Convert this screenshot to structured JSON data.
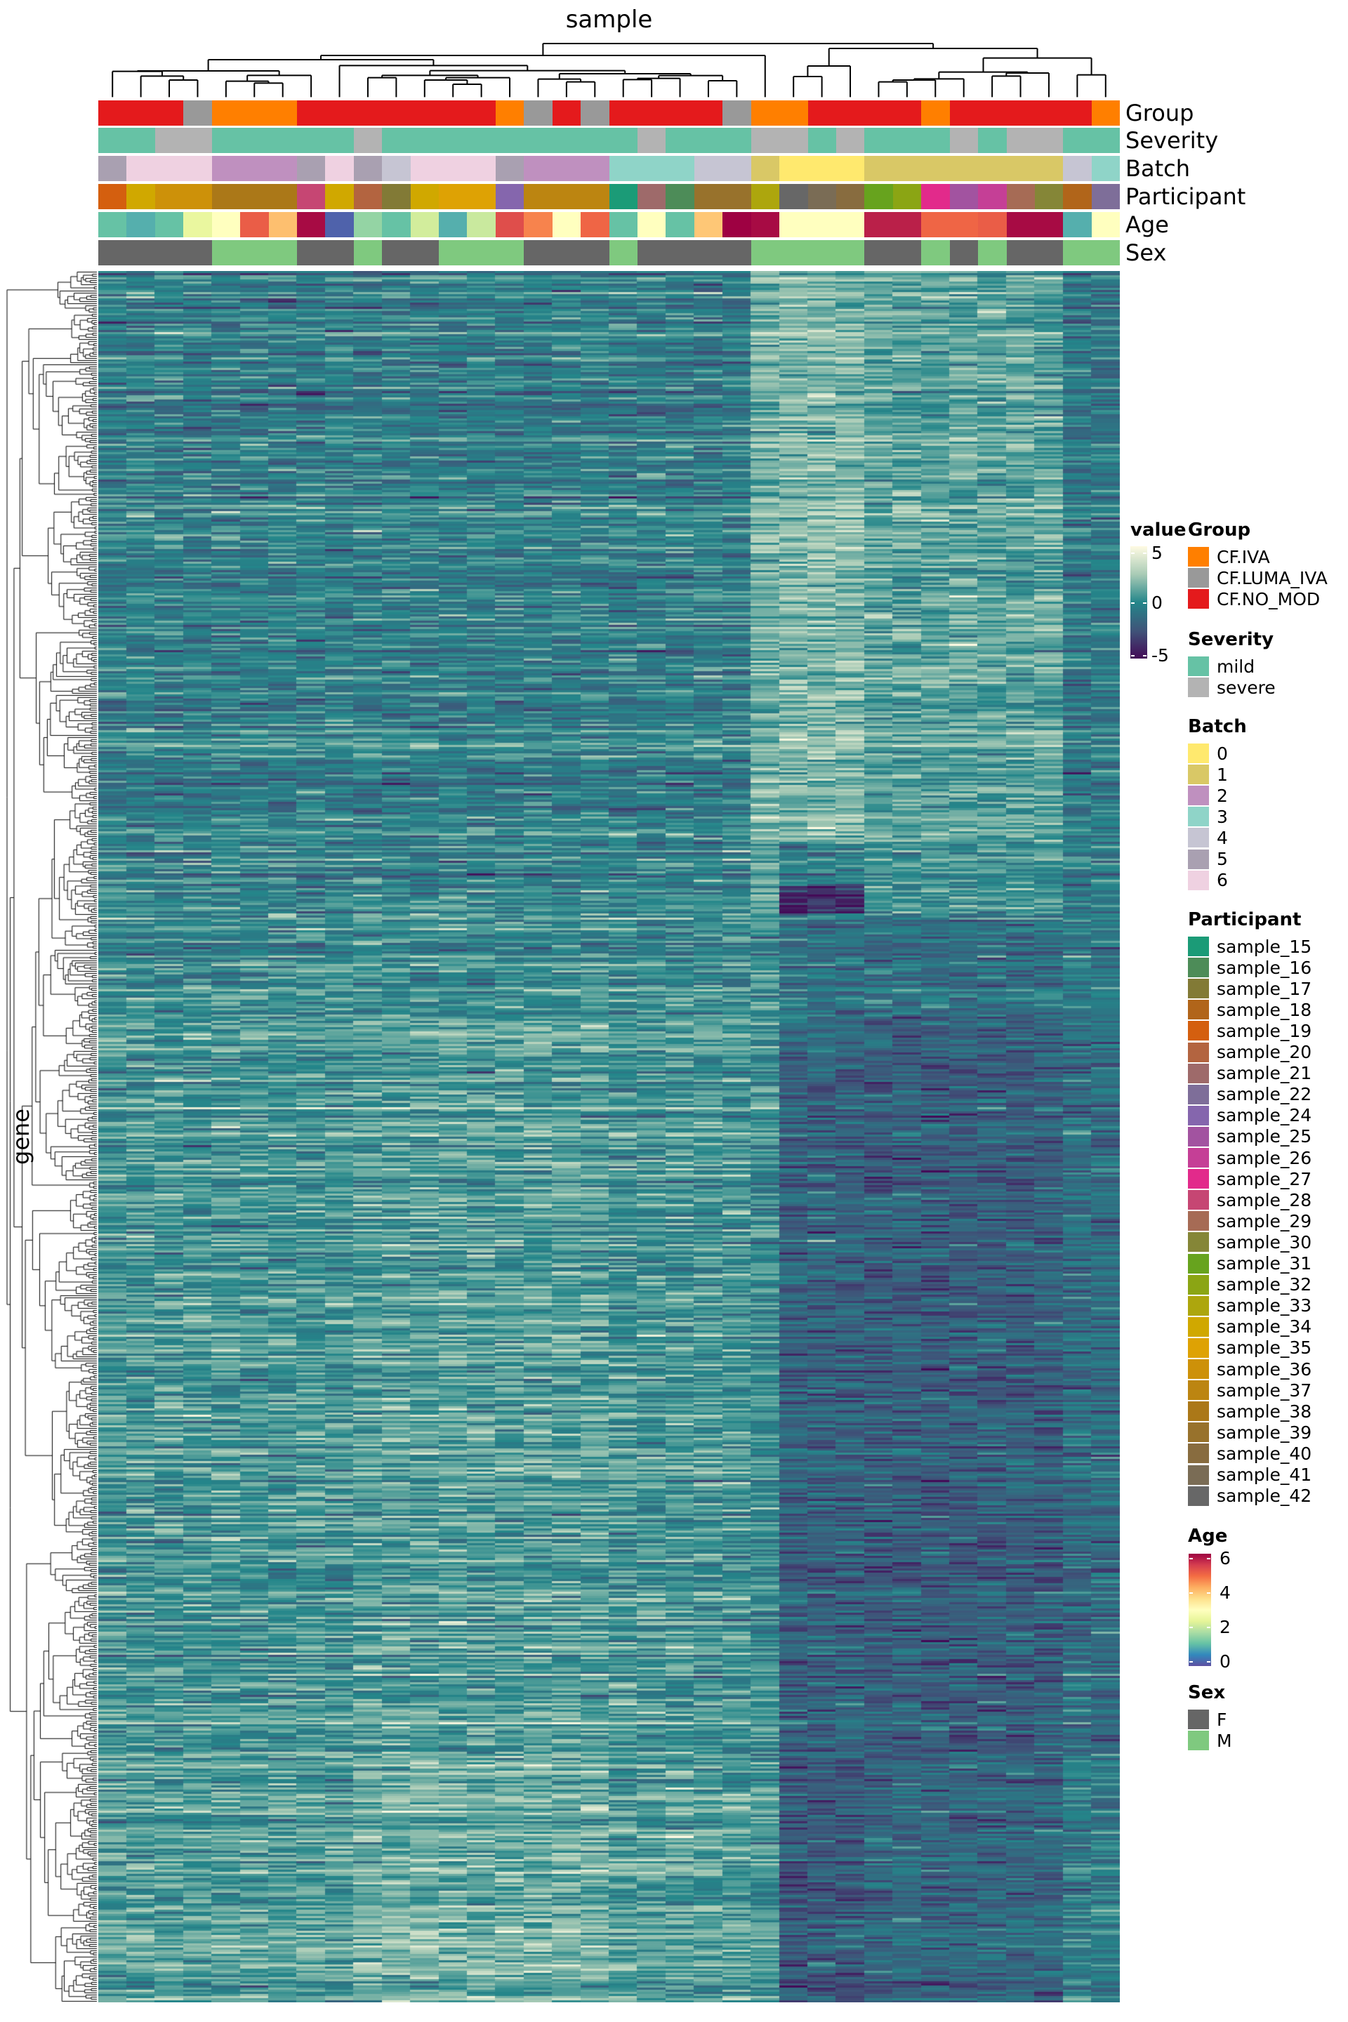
{
  "chart_data": {
    "type": "heatmap",
    "title": "sample",
    "xlabel": "sample",
    "ylabel": "gene",
    "n_columns": 36,
    "color_scale": {
      "title": "value",
      "min": -5,
      "max": 5,
      "ticks": [
        "5",
        "0",
        "-5"
      ],
      "colors": [
        "#440a57",
        "#3f5479",
        "#24868a",
        "#a9cbb6",
        "#fffbe3"
      ]
    },
    "annotation_rows": [
      "Group",
      "Severity",
      "Batch",
      "Participant",
      "Age",
      "Sex"
    ],
    "columns": {
      "Group": [
        "CF.NO_MOD",
        "CF.NO_MOD",
        "CF.NO_MOD",
        "CF.LUMA_IVA",
        "CF.IVA",
        "CF.IVA",
        "CF.IVA",
        "CF.NO_MOD",
        "CF.NO_MOD",
        "CF.NO_MOD",
        "CF.NO_MOD",
        "CF.NO_MOD",
        "CF.NO_MOD",
        "CF.NO_MOD",
        "CF.IVA",
        "CF.LUMA_IVA",
        "CF.NO_MOD",
        "CF.LUMA_IVA",
        "CF.NO_MOD",
        "CF.NO_MOD",
        "CF.NO_MOD",
        "CF.NO_MOD",
        "CF.LUMA_IVA",
        "CF.IVA",
        "CF.IVA",
        "CF.NO_MOD",
        "CF.NO_MOD",
        "CF.NO_MOD",
        "CF.NO_MOD",
        "CF.IVA",
        "CF.NO_MOD",
        "CF.NO_MOD",
        "CF.NO_MOD",
        "CF.NO_MOD",
        "CF.NO_MOD",
        "CF.IVA"
      ],
      "Severity": [
        "mild",
        "mild",
        "severe",
        "severe",
        "mild",
        "mild",
        "mild",
        "mild",
        "mild",
        "severe",
        "mild",
        "mild",
        "mild",
        "mild",
        "mild",
        "mild",
        "mild",
        "mild",
        "mild",
        "severe",
        "mild",
        "mild",
        "mild",
        "severe",
        "severe",
        "mild",
        "severe",
        "mild",
        "mild",
        "mild",
        "severe",
        "mild",
        "severe",
        "severe",
        "mild",
        "mild"
      ],
      "Batch": [
        "5",
        "6",
        "6",
        "6",
        "2",
        "2",
        "2",
        "5",
        "6",
        "5",
        "4",
        "6",
        "6",
        "6",
        "5",
        "2",
        "2",
        "2",
        "3",
        "3",
        "3",
        "4",
        "4",
        "1",
        "0",
        "0",
        "0",
        "1",
        "1",
        "1",
        "1",
        "1",
        "1",
        "1",
        "4",
        "3"
      ],
      "Participant": [
        "sample_19",
        "sample_34",
        "sample_36",
        "sample_36",
        "sample_38",
        "sample_38",
        "sample_38",
        "sample_28",
        "sample_34",
        "sample_20",
        "sample_17",
        "sample_34",
        "sample_35",
        "sample_35",
        "sample_24",
        "sample_37",
        "sample_37",
        "sample_37",
        "sample_15",
        "sample_21",
        "sample_16",
        "sample_39",
        "sample_39",
        "sample_33",
        "sample_42",
        "sample_41",
        "sample_40",
        "sample_31",
        "sample_32",
        "sample_27",
        "sample_25",
        "sample_26",
        "sample_29",
        "sample_30",
        "sample_18",
        "sample_22"
      ],
      "Age": [
        1.2,
        1.0,
        1.2,
        2.5,
        3.0,
        5.0,
        4.0,
        5.9,
        0.2,
        1.6,
        1.2,
        2.2,
        1.0,
        2.1,
        5.2,
        4.6,
        3.0,
        4.9,
        1.2,
        3.0,
        1.2,
        3.9,
        6.2,
        5.9,
        3.0,
        3.0,
        3.0,
        5.7,
        5.7,
        4.9,
        4.9,
        5.0,
        5.9,
        5.9,
        1.0,
        3.0
      ],
      "Sex": [
        "F",
        "F",
        "F",
        "F",
        "M",
        "M",
        "M",
        "F",
        "F",
        "M",
        "F",
        "F",
        "M",
        "M",
        "M",
        "F",
        "F",
        "F",
        "M",
        "F",
        "F",
        "F",
        "F",
        "M",
        "M",
        "M",
        "M",
        "F",
        "F",
        "M",
        "F",
        "M",
        "F",
        "F",
        "M",
        "M"
      ]
    }
  },
  "legends": {
    "value": {
      "title": "value",
      "ticks": [
        "5",
        "0",
        "-5"
      ]
    },
    "Group": {
      "title": "Group",
      "items": [
        {
          "label": "CF.IVA",
          "color": "#ff7f00"
        },
        {
          "label": "CF.LUMA_IVA",
          "color": "#999999"
        },
        {
          "label": "CF.NO_MOD",
          "color": "#e41a1c"
        }
      ]
    },
    "Severity": {
      "title": "Severity",
      "items": [
        {
          "label": "mild",
          "color": "#66c2a5"
        },
        {
          "label": "severe",
          "color": "#b3b3b3"
        }
      ]
    },
    "Batch": {
      "title": "Batch",
      "items": [
        {
          "label": "0",
          "color": "#ffe96e"
        },
        {
          "label": "1",
          "color": "#d9c866"
        },
        {
          "label": "2",
          "color": "#bf90bf"
        },
        {
          "label": "3",
          "color": "#8fd4c8"
        },
        {
          "label": "4",
          "color": "#c6c5d3"
        },
        {
          "label": "5",
          "color": "#a9a0b1"
        },
        {
          "label": "6",
          "color": "#efd1e1"
        }
      ]
    },
    "Participant": {
      "title": "Participant",
      "items": [
        {
          "label": "sample_15",
          "color": "#1b9b77"
        },
        {
          "label": "sample_16",
          "color": "#4d8c58"
        },
        {
          "label": "sample_17",
          "color": "#827a36"
        },
        {
          "label": "sample_18",
          "color": "#b1651a"
        },
        {
          "label": "sample_19",
          "color": "#d45f0f"
        },
        {
          "label": "sample_20",
          "color": "#b36440"
        },
        {
          "label": "sample_21",
          "color": "#9e6a6a"
        },
        {
          "label": "sample_22",
          "color": "#7e6e99"
        },
        {
          "label": "sample_24",
          "color": "#8566ad"
        },
        {
          "label": "sample_25",
          "color": "#a253a0"
        },
        {
          "label": "sample_26",
          "color": "#c53f96"
        },
        {
          "label": "sample_27",
          "color": "#e22a8b"
        },
        {
          "label": "sample_28",
          "color": "#c64673"
        },
        {
          "label": "sample_29",
          "color": "#a66b55"
        },
        {
          "label": "sample_30",
          "color": "#858637"
        },
        {
          "label": "sample_31",
          "color": "#67a31e"
        },
        {
          "label": "sample_32",
          "color": "#8ba514"
        },
        {
          "label": "sample_33",
          "color": "#ada60d"
        },
        {
          "label": "sample_34",
          "color": "#d0a800"
        },
        {
          "label": "sample_35",
          "color": "#dea204"
        },
        {
          "label": "sample_36",
          "color": "#cd9109"
        },
        {
          "label": "sample_37",
          "color": "#bc8511"
        },
        {
          "label": "sample_38",
          "color": "#ab7818"
        },
        {
          "label": "sample_39",
          "color": "#98722c"
        },
        {
          "label": "sample_40",
          "color": "#886c3f"
        },
        {
          "label": "sample_41",
          "color": "#7a6c55"
        },
        {
          "label": "sample_42",
          "color": "#676767"
        }
      ]
    },
    "Age": {
      "title": "Age",
      "min": 0,
      "max": 6,
      "ticks": [
        "6",
        "4",
        "2",
        "0"
      ],
      "colors": [
        "#5e4fa2",
        "#3288bd",
        "#66c2a5",
        "#abdda4",
        "#e6f598",
        "#ffffbf",
        "#fee08b",
        "#fdae61",
        "#f46d43",
        "#d53e4f",
        "#9e0142"
      ]
    },
    "Sex": {
      "title": "Sex",
      "items": [
        {
          "label": "F",
          "color": "#666666"
        },
        {
          "label": "M",
          "color": "#7fc97f"
        }
      ]
    }
  }
}
